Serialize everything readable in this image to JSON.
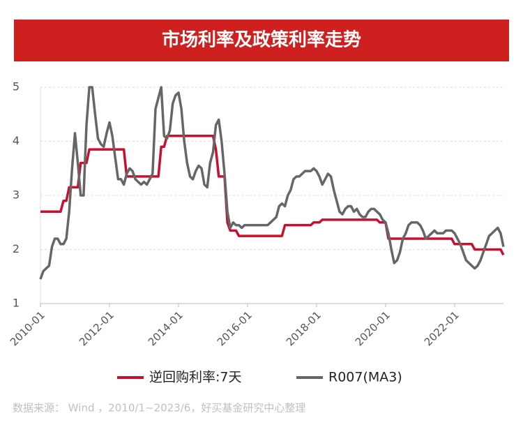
{
  "chart_data": {
    "type": "line",
    "title": "市场利率及政策利率走势",
    "source": "数据来源： Wind ，2010/1~2023/6，好买基金研究中心整理",
    "x": [
      "2010-01",
      "2010-02",
      "2010-03",
      "2010-04",
      "2010-05",
      "2010-06",
      "2010-07",
      "2010-08",
      "2010-09",
      "2010-10",
      "2010-11",
      "2010-12",
      "2011-01",
      "2011-02",
      "2011-03",
      "2011-04",
      "2011-05",
      "2011-06",
      "2011-07",
      "2011-08",
      "2011-09",
      "2011-10",
      "2011-11",
      "2011-12",
      "2012-01",
      "2012-02",
      "2012-03",
      "2012-04",
      "2012-05",
      "2012-06",
      "2012-07",
      "2012-08",
      "2012-09",
      "2012-10",
      "2012-11",
      "2012-12",
      "2013-01",
      "2013-02",
      "2013-03",
      "2013-04",
      "2013-05",
      "2013-06",
      "2013-07",
      "2013-08",
      "2013-09",
      "2013-10",
      "2013-11",
      "2013-12",
      "2014-01",
      "2014-02",
      "2014-03",
      "2014-04",
      "2014-05",
      "2014-06",
      "2014-07",
      "2014-08",
      "2014-09",
      "2014-10",
      "2014-11",
      "2014-12",
      "2015-01",
      "2015-02",
      "2015-03",
      "2015-04",
      "2015-05",
      "2015-06",
      "2015-07",
      "2015-08",
      "2015-09",
      "2015-10",
      "2015-11",
      "2015-12",
      "2016-01",
      "2016-02",
      "2016-03",
      "2016-04",
      "2016-05",
      "2016-06",
      "2016-07",
      "2016-08",
      "2016-09",
      "2016-10",
      "2016-11",
      "2016-12",
      "2017-01",
      "2017-02",
      "2017-03",
      "2017-04",
      "2017-05",
      "2017-06",
      "2017-07",
      "2017-08",
      "2017-09",
      "2017-10",
      "2017-11",
      "2017-12",
      "2018-01",
      "2018-02",
      "2018-03",
      "2018-04",
      "2018-05",
      "2018-06",
      "2018-07",
      "2018-08",
      "2018-09",
      "2018-10",
      "2018-11",
      "2018-12",
      "2019-01",
      "2019-02",
      "2019-03",
      "2019-04",
      "2019-05",
      "2019-06",
      "2019-07",
      "2019-08",
      "2019-09",
      "2019-10",
      "2019-11",
      "2019-12",
      "2020-01",
      "2020-02",
      "2020-03",
      "2020-04",
      "2020-05",
      "2020-06",
      "2020-07",
      "2020-08",
      "2020-09",
      "2020-10",
      "2020-11",
      "2020-12",
      "2021-01",
      "2021-02",
      "2021-03",
      "2021-04",
      "2021-05",
      "2021-06",
      "2021-07",
      "2021-08",
      "2021-09",
      "2021-10",
      "2021-11",
      "2021-12",
      "2022-01",
      "2022-02",
      "2022-03",
      "2022-04",
      "2022-05",
      "2022-06",
      "2022-07",
      "2022-08",
      "2022-09",
      "2022-10",
      "2022-11",
      "2022-12",
      "2023-01",
      "2023-02",
      "2023-03",
      "2023-04",
      "2023-05",
      "2023-06"
    ],
    "series": [
      {
        "name": "逆回购利率:7天",
        "color": "#c8102e",
        "values": [
          2.7,
          2.7,
          2.7,
          2.7,
          2.7,
          2.7,
          2.7,
          2.7,
          2.9,
          2.9,
          3.15,
          3.15,
          3.15,
          3.15,
          3.6,
          3.6,
          3.6,
          3.85,
          3.85,
          3.85,
          3.85,
          3.85,
          3.85,
          3.85,
          3.85,
          3.85,
          3.85,
          3.85,
          3.85,
          3.85,
          3.35,
          3.35,
          3.35,
          3.35,
          3.35,
          3.35,
          3.35,
          3.35,
          3.35,
          3.35,
          3.35,
          3.35,
          3.9,
          3.9,
          4.1,
          4.1,
          4.1,
          4.1,
          4.1,
          4.1,
          4.1,
          4.1,
          4.1,
          4.1,
          4.1,
          4.1,
          4.1,
          4.1,
          4.1,
          4.1,
          4.1,
          3.85,
          3.35,
          3.35,
          3.35,
          2.5,
          2.35,
          2.35,
          2.35,
          2.25,
          2.25,
          2.25,
          2.25,
          2.25,
          2.25,
          2.25,
          2.25,
          2.25,
          2.25,
          2.25,
          2.25,
          2.25,
          2.25,
          2.25,
          2.25,
          2.45,
          2.45,
          2.45,
          2.45,
          2.45,
          2.45,
          2.45,
          2.45,
          2.45,
          2.45,
          2.5,
          2.5,
          2.5,
          2.55,
          2.55,
          2.55,
          2.55,
          2.55,
          2.55,
          2.55,
          2.55,
          2.55,
          2.55,
          2.55,
          2.55,
          2.55,
          2.55,
          2.55,
          2.55,
          2.55,
          2.55,
          2.55,
          2.55,
          2.5,
          2.5,
          2.5,
          2.2,
          2.2,
          2.2,
          2.2,
          2.2,
          2.2,
          2.2,
          2.2,
          2.2,
          2.2,
          2.2,
          2.2,
          2.2,
          2.2,
          2.2,
          2.2,
          2.2,
          2.2,
          2.2,
          2.2,
          2.2,
          2.2,
          2.2,
          2.1,
          2.1,
          2.1,
          2.1,
          2.1,
          2.1,
          2.1,
          2.0,
          2.0,
          2.0,
          2.0,
          2.0,
          2.0,
          2.0,
          2.0,
          2.0,
          2.0,
          1.9
        ]
      },
      {
        "name": "R007(MA3)",
        "color": "#666666",
        "values": [
          1.45,
          1.6,
          1.65,
          1.7,
          2.05,
          2.2,
          2.2,
          2.1,
          2.1,
          2.2,
          2.7,
          3.5,
          4.15,
          3.6,
          3.0,
          3.0,
          4.3,
          5.0,
          5.0,
          4.5,
          4.05,
          3.95,
          3.9,
          4.15,
          4.35,
          4.1,
          3.7,
          3.3,
          3.3,
          3.2,
          3.4,
          3.5,
          3.45,
          3.3,
          3.25,
          3.2,
          3.25,
          3.2,
          3.3,
          3.4,
          4.6,
          4.8,
          5.0,
          4.1,
          4.05,
          4.2,
          4.7,
          4.85,
          4.9,
          4.6,
          4.0,
          3.6,
          3.35,
          3.3,
          3.45,
          3.55,
          3.5,
          3.2,
          3.15,
          3.6,
          3.8,
          4.3,
          4.4,
          4.0,
          3.4,
          2.7,
          2.4,
          2.5,
          2.45,
          2.45,
          2.4,
          2.45,
          2.45,
          2.45,
          2.45,
          2.45,
          2.45,
          2.45,
          2.45,
          2.45,
          2.5,
          2.55,
          2.6,
          2.8,
          2.85,
          2.8,
          3.0,
          3.1,
          3.3,
          3.35,
          3.35,
          3.4,
          3.45,
          3.45,
          3.45,
          3.5,
          3.45,
          3.35,
          3.2,
          3.3,
          3.4,
          3.35,
          3.1,
          2.9,
          2.7,
          2.65,
          2.75,
          2.8,
          2.8,
          2.7,
          2.75,
          2.65,
          2.6,
          2.6,
          2.7,
          2.75,
          2.75,
          2.7,
          2.65,
          2.55,
          2.5,
          2.3,
          2.0,
          1.75,
          1.8,
          1.95,
          2.2,
          2.3,
          2.45,
          2.5,
          2.5,
          2.5,
          2.45,
          2.35,
          2.2,
          2.25,
          2.3,
          2.35,
          2.3,
          2.3,
          2.3,
          2.35,
          2.35,
          2.35,
          2.3,
          2.2,
          2.1,
          1.95,
          1.8,
          1.75,
          1.7,
          1.65,
          1.7,
          1.8,
          1.95,
          2.1,
          2.25,
          2.3,
          2.35,
          2.4,
          2.3,
          2.05
        ]
      }
    ],
    "xlim": [
      "2010-01",
      "2023-06"
    ],
    "xticks": [
      "2010-01",
      "2012-01",
      "2014-01",
      "2016-01",
      "2018-01",
      "2020-01",
      "2022-01"
    ],
    "ylim": [
      1,
      5
    ],
    "yticks": [
      1,
      2,
      3,
      4,
      5
    ],
    "grid": true,
    "legend": "bottom"
  }
}
